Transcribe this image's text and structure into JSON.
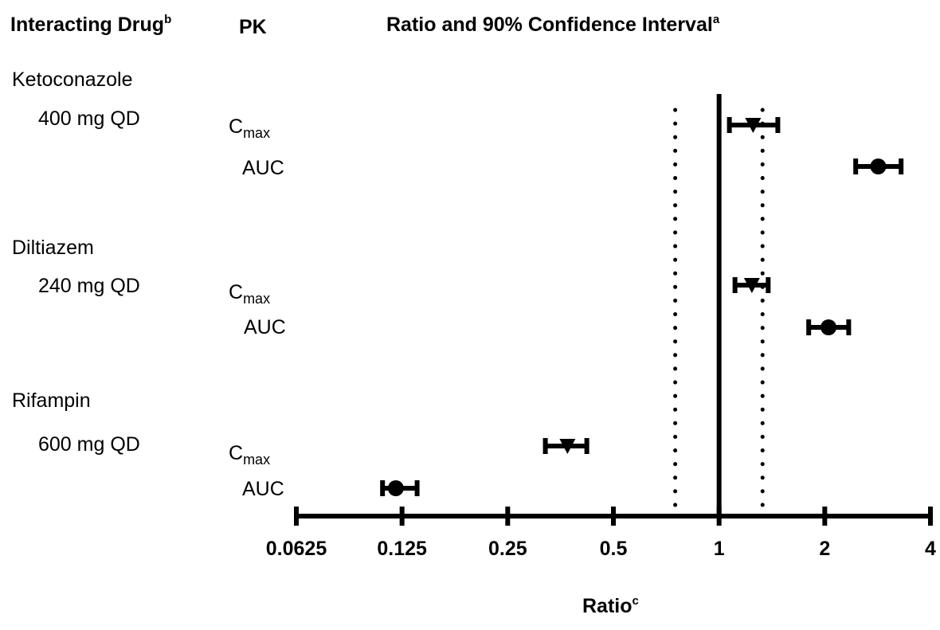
{
  "headers": {
    "drug": "Interacting Drug",
    "drug_sup": "b",
    "pk": "PK",
    "ratio": "Ratio and 90% Confidence Interval",
    "ratio_sup": "a"
  },
  "drugs": [
    {
      "name": "Ketoconazole",
      "dose": "400 mg QD"
    },
    {
      "name": "Diltiazem",
      "dose": "240 mg QD"
    },
    {
      "name": "Rifampin",
      "dose": "600 mg QD"
    }
  ],
  "pk_labels": {
    "cmax_main": "C",
    "cmax_sub": "max",
    "auc": "AUC"
  },
  "chart_data": {
    "type": "forest",
    "x_scale": "log2",
    "xlim": [
      0.0625,
      4
    ],
    "xticks": [
      "0.0625",
      "0.125",
      "0.25",
      "0.5",
      "1",
      "2",
      "4"
    ],
    "xlabel": "Ratio",
    "xlabel_sup": "c",
    "reference_line": 1,
    "bounds": [
      0.75,
      1.33
    ],
    "rows": [
      {
        "drug": "Ketoconazole",
        "pk": "Cmax",
        "marker": "triangle-down",
        "ratio": 1.25,
        "lo": 1.07,
        "hi": 1.47
      },
      {
        "drug": "Ketoconazole",
        "pk": "AUC",
        "marker": "circle",
        "ratio": 2.84,
        "lo": 2.45,
        "hi": 3.3
      },
      {
        "drug": "Diltiazem",
        "pk": "Cmax",
        "marker": "triangle-down",
        "ratio": 1.24,
        "lo": 1.11,
        "hi": 1.38
      },
      {
        "drug": "Diltiazem",
        "pk": "AUC",
        "marker": "circle",
        "ratio": 2.05,
        "lo": 1.8,
        "hi": 2.34
      },
      {
        "drug": "Rifampin",
        "pk": "Cmax",
        "marker": "triangle-down",
        "ratio": 0.37,
        "lo": 0.32,
        "hi": 0.42
      },
      {
        "drug": "Rifampin",
        "pk": "AUC",
        "marker": "circle",
        "ratio": 0.12,
        "lo": 0.11,
        "hi": 0.138
      }
    ]
  }
}
